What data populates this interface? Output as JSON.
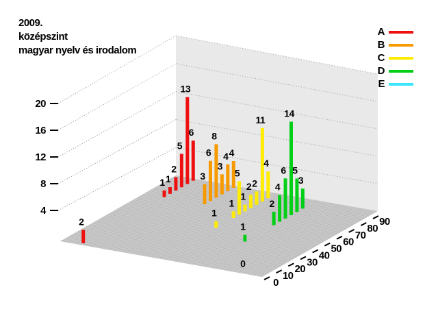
{
  "title": {
    "line1": "2009.",
    "line2": "középszint",
    "line3": "magyar nyelv és irodalom"
  },
  "legend": {
    "items": [
      "A",
      "B",
      "C",
      "D",
      "E"
    ]
  },
  "chart_data": {
    "type": "bar",
    "projection": "3d-impulses",
    "title": "2009. középszint magyar nyelv és irodalom",
    "x_ticks": [
      0,
      10,
      20,
      30,
      40,
      50,
      60,
      70,
      80,
      90
    ],
    "x_range": [
      0,
      100
    ],
    "bin_width": 5,
    "z_ticks": [
      4,
      8,
      12,
      16,
      20
    ],
    "z_range": [
      0,
      20
    ],
    "grid": "dotted",
    "legend_position": "top-right",
    "rows_order": "A back row, E front row",
    "series": [
      {
        "name": "A",
        "color": "#ee1010",
        "points": [
          [
            0,
            2
          ],
          [
            70,
            1
          ],
          [
            75,
            1
          ],
          [
            80,
            2
          ],
          [
            85,
            5
          ],
          [
            90,
            13
          ],
          [
            95,
            6
          ]
        ]
      },
      {
        "name": "B",
        "color": "#f79a00",
        "points": [
          [
            70,
            3
          ],
          [
            75,
            6
          ],
          [
            80,
            8
          ],
          [
            85,
            3
          ],
          [
            90,
            4
          ],
          [
            95,
            4
          ]
        ]
      },
      {
        "name": "C",
        "color": "#ffec00",
        "points": [
          [
            45,
            1
          ],
          [
            60,
            1
          ],
          [
            65,
            5
          ],
          [
            70,
            1
          ],
          [
            75,
            2
          ],
          [
            80,
            2
          ],
          [
            85,
            11
          ],
          [
            90,
            4
          ]
        ]
      },
      {
        "name": "D",
        "color": "#04cf17",
        "points": [
          [
            35,
            1
          ],
          [
            60,
            2
          ],
          [
            65,
            4
          ],
          [
            70,
            6
          ],
          [
            75,
            14
          ],
          [
            80,
            5
          ],
          [
            85,
            3
          ]
        ]
      },
      {
        "name": "E",
        "color": "#3ae5fa",
        "points": [
          [
            0,
            0
          ]
        ]
      }
    ]
  }
}
